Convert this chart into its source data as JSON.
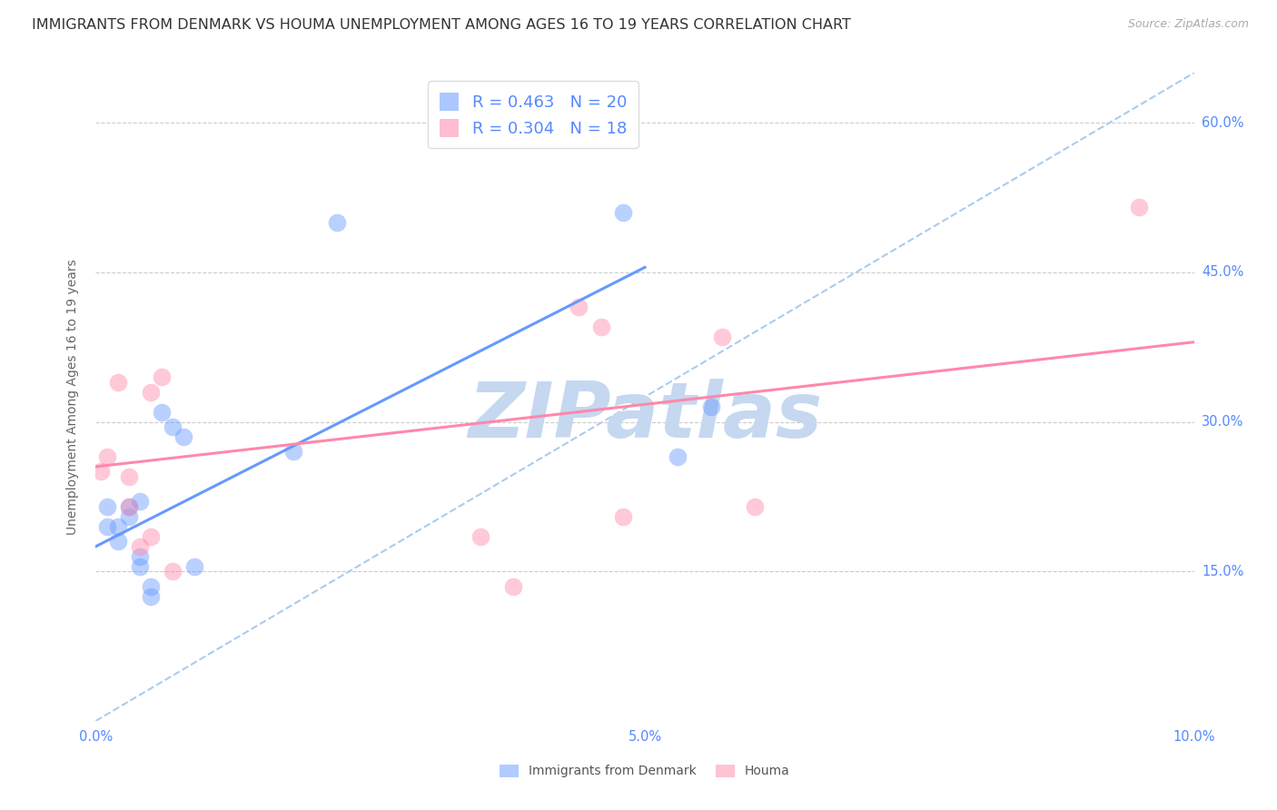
{
  "title": "IMMIGRANTS FROM DENMARK VS HOUMA UNEMPLOYMENT AMONG AGES 16 TO 19 YEARS CORRELATION CHART",
  "source": "Source: ZipAtlas.com",
  "ylabel": "Unemployment Among Ages 16 to 19 years",
  "xlim": [
    0.0,
    0.1
  ],
  "ylim": [
    0.0,
    0.65
  ],
  "right_yticks": [
    0.15,
    0.3,
    0.45,
    0.6
  ],
  "right_ytick_labels": [
    "15.0%",
    "30.0%",
    "45.0%",
    "60.0%"
  ],
  "background_color": "#ffffff",
  "watermark": "ZIPatlas",
  "legend1_label": "R = 0.463   N = 20",
  "legend2_label": "R = 0.304   N = 18",
  "blue_color": "#6699ff",
  "pink_color": "#ff88aa",
  "dashed_color": "#aaccee",
  "title_color": "#333333",
  "right_label_color": "#5588ff",
  "watermark_color": "#c5d8f0",
  "blue_scatter_x": [
    0.001,
    0.001,
    0.002,
    0.002,
    0.003,
    0.003,
    0.004,
    0.004,
    0.004,
    0.005,
    0.005,
    0.006,
    0.007,
    0.008,
    0.009,
    0.018,
    0.022,
    0.048,
    0.053,
    0.056
  ],
  "blue_scatter_y": [
    0.215,
    0.195,
    0.18,
    0.195,
    0.215,
    0.205,
    0.155,
    0.165,
    0.22,
    0.135,
    0.125,
    0.31,
    0.295,
    0.285,
    0.155,
    0.27,
    0.5,
    0.51,
    0.265,
    0.315
  ],
  "pink_scatter_x": [
    0.0005,
    0.001,
    0.002,
    0.003,
    0.003,
    0.004,
    0.005,
    0.005,
    0.006,
    0.007,
    0.035,
    0.038,
    0.044,
    0.046,
    0.048,
    0.057,
    0.06,
    0.095
  ],
  "pink_scatter_y": [
    0.25,
    0.265,
    0.34,
    0.215,
    0.245,
    0.175,
    0.33,
    0.185,
    0.345,
    0.15,
    0.185,
    0.135,
    0.415,
    0.395,
    0.205,
    0.385,
    0.215,
    0.515
  ],
  "blue_line_x": [
    0.0,
    0.05
  ],
  "blue_line_y": [
    0.175,
    0.455
  ],
  "pink_line_x": [
    0.0,
    0.1
  ],
  "pink_line_y": [
    0.255,
    0.38
  ],
  "dashed_line_x": [
    0.0,
    0.1
  ],
  "dashed_line_y": [
    0.0,
    0.65
  ],
  "scatter_size": 200,
  "scatter_alpha": 0.45,
  "title_fontsize": 11.5,
  "label_fontsize": 10,
  "tick_fontsize": 10.5,
  "legend_fontsize": 13,
  "source_fontsize": 9,
  "watermark_fontsize": 62,
  "watermark_alpha": 1.0,
  "grid_color": "#cccccc"
}
